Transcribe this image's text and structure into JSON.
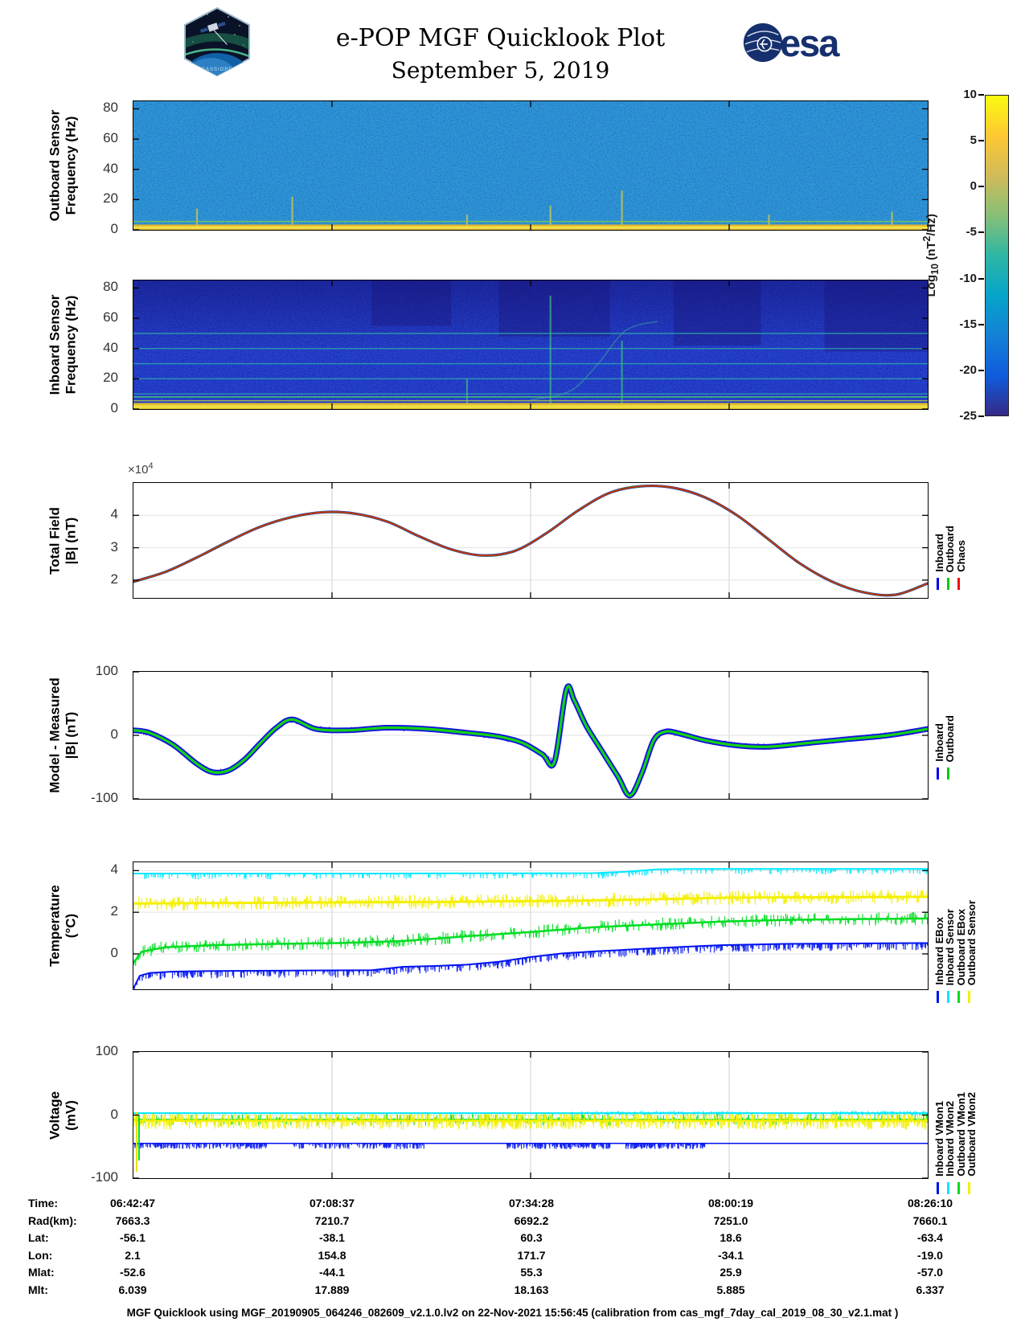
{
  "header": {
    "title": "e-POP MGF Quicklook Plot",
    "date": "September 5, 2019",
    "patch_label": "CASSIOPE",
    "esa_label": "esa"
  },
  "colorbar": {
    "range": [
      -25,
      10
    ],
    "ticks": [
      10,
      5,
      0,
      -5,
      -10,
      -15,
      -20,
      -25
    ],
    "stops": [
      "#352a87",
      "#0f5cdd",
      "#1481d6",
      "#06a4ca",
      "#2eb7a4",
      "#87bf77",
      "#d1bb59",
      "#fec832",
      "#f9fb0e"
    ],
    "label": {
      "p1": "Log",
      "sub": "10",
      "p2": " (nT",
      "sup": "2",
      "p3": "/Hz)"
    }
  },
  "legends": [
    {
      "panel": "total_field",
      "entries": [
        {
          "label": "Inboard",
          "color": "#0000ee"
        },
        {
          "label": "Outboard",
          "color": "#00cc00"
        },
        {
          "label": "Chaos",
          "color": "#ff0000"
        }
      ]
    },
    {
      "panel": "model_measured",
      "entries": [
        {
          "label": "Inboard",
          "color": "#0000ee"
        },
        {
          "label": "Outboard",
          "color": "#00cc00"
        }
      ]
    },
    {
      "panel": "temperature",
      "entries": [
        {
          "label": "Inboard EBox",
          "color": "#0013ee"
        },
        {
          "label": "Inboard Sensor",
          "color": "#00e8ff"
        },
        {
          "label": "Outboard EBox",
          "color": "#00dd22"
        },
        {
          "label": "Outboard Sensor",
          "color": "#f4f000"
        }
      ]
    },
    {
      "panel": "voltage",
      "entries": [
        {
          "label": "Inboard VMon1",
          "color": "#0013ee"
        },
        {
          "label": "Inboard VMon2",
          "color": "#00e8ff"
        },
        {
          "label": "Outboard VMon1",
          "color": "#00dd22"
        },
        {
          "label": "Outboard VMon2",
          "color": "#f4f000"
        }
      ]
    }
  ],
  "table": {
    "rows": [
      {
        "label": "Time:",
        "values": [
          "06:42:47",
          "07:08:37",
          "07:34:28",
          "08:00:19",
          "08:26:10"
        ]
      },
      {
        "label": "Rad(km):",
        "values": [
          "7663.3",
          "7210.7",
          "6692.2",
          "7251.0",
          "7660.1"
        ]
      },
      {
        "label": "Lat:",
        "values": [
          "-56.1",
          "-38.1",
          "60.3",
          "18.6",
          "-63.4"
        ]
      },
      {
        "label": "Lon:",
        "values": [
          "2.1",
          "154.8",
          "171.7",
          "-34.1",
          "-19.0"
        ]
      },
      {
        "label": "Mlat:",
        "values": [
          "-52.6",
          "-44.1",
          "55.3",
          "25.9",
          "-57.0"
        ]
      },
      {
        "label": "Mlt:",
        "values": [
          "6.039",
          "17.889",
          "18.163",
          "5.885",
          "6.337"
        ]
      }
    ]
  },
  "footer": {
    "text": "MGF Quicklook using MGF_20190905_064246_082609_v2.1.0.lv2 on 22-Nov-2021 15:56:45 (calibration from cas_mgf_7day_cal_2019_08_30_v2.1.mat )"
  },
  "chart_data": [
    {
      "id": "outboard_spectrogram",
      "type": "heatmap",
      "ylabel_lines": [
        "Outboard Sensor",
        "Frequency (Hz)"
      ],
      "ylim": [
        0,
        85
      ],
      "yticks": [
        0,
        20,
        40,
        60,
        80
      ],
      "colormap": "parula",
      "value_label": "Log10 (nT^2/Hz)",
      "value_range": [
        -25,
        10
      ],
      "background_log10_level": -10,
      "base_color": "#2e95d3",
      "noise_color": "#1747c0",
      "noise_opacity": 0.5,
      "bottom_band": {
        "freq_max": 3.5,
        "color": "#e2b62e"
      },
      "low_lines": [
        {
          "f": 5.5,
          "c": "#86c84e",
          "w": 1.5,
          "o": 0.85
        },
        {
          "f": 1.5,
          "c": "#f2e14a",
          "w": 3,
          "o": 1
        }
      ],
      "streaks": [
        {
          "x": 0.08,
          "f": 14
        },
        {
          "x": 0.2,
          "f": 22
        },
        {
          "x": 0.42,
          "f": 10
        },
        {
          "x": 0.525,
          "f": 16
        },
        {
          "x": 0.615,
          "f": 26
        },
        {
          "x": 0.8,
          "f": 10
        },
        {
          "x": 0.955,
          "f": 12
        }
      ],
      "streak_color": "#e8d23a"
    },
    {
      "id": "inboard_spectrogram",
      "type": "heatmap",
      "ylabel_lines": [
        "Inboard Sensor",
        "Frequency (Hz)"
      ],
      "ylim": [
        0,
        85
      ],
      "yticks": [
        0,
        20,
        40,
        60,
        80
      ],
      "colormap": "parula",
      "value_label": "Log10 (nT^2/Hz)",
      "value_range": [
        -25,
        10
      ],
      "background_log10_level": -18,
      "base_color": "#2640cc",
      "noise_color": "#0e1584",
      "noise_opacity": 0.6,
      "top_shade": {
        "color": "#100864",
        "opacity": 0.45
      },
      "harmonic_lines": {
        "freqs": [
          10,
          20,
          30,
          40,
          50
        ],
        "color": "#2fb3a8",
        "opacity": 0.75
      },
      "dark_bands": [
        [
          0.3,
          0.4,
          55
        ],
        [
          0.46,
          0.6,
          48
        ],
        [
          0.68,
          0.79,
          42
        ],
        [
          0.87,
          1.0,
          38
        ]
      ],
      "dark_color": "#191173",
      "curve": {
        "pts": [
          [
            0.5,
            6
          ],
          [
            0.55,
            12
          ],
          [
            0.585,
            30
          ],
          [
            0.62,
            52
          ],
          [
            0.66,
            58
          ]
        ],
        "color": "#43b89a"
      },
      "bottom_band": {
        "freq_max": 4,
        "color": "#e2c22e"
      },
      "low_lines": [
        {
          "f": 8,
          "c": "#49c474",
          "w": 1.8,
          "o": 0.8
        },
        {
          "f": 5.5,
          "c": "#bcd23c",
          "w": 1.5,
          "o": 0.8
        },
        {
          "f": 1.5,
          "c": "#f2e14a",
          "w": 3,
          "o": 1
        }
      ],
      "streaks": [
        {
          "x": 0.525,
          "f": 75
        },
        {
          "x": 0.615,
          "f": 45
        },
        {
          "x": 0.42,
          "f": 20
        }
      ],
      "streak_color": "#3ec87e"
    },
    {
      "id": "total_field",
      "type": "line",
      "smooth": true,
      "ylabel_lines": [
        "Total Field",
        "|B| (nT)"
      ],
      "multiplier": {
        "base": "×10",
        "exp": "4"
      },
      "ylim": [
        1.45,
        5.0
      ],
      "yticks": [
        2,
        3,
        4
      ],
      "xgrid": [
        0.25,
        0.5,
        0.75
      ],
      "x": [
        0,
        0.04,
        0.08,
        0.12,
        0.16,
        0.2,
        0.24,
        0.28,
        0.32,
        0.36,
        0.4,
        0.44,
        0.48,
        0.52,
        0.56,
        0.6,
        0.64,
        0.68,
        0.72,
        0.76,
        0.8,
        0.84,
        0.88,
        0.92,
        0.96,
        1.0
      ],
      "v": [
        1.95,
        2.25,
        2.7,
        3.2,
        3.65,
        3.95,
        4.1,
        4.05,
        3.8,
        3.35,
        2.95,
        2.76,
        2.9,
        3.45,
        4.15,
        4.7,
        4.9,
        4.85,
        4.55,
        4.0,
        3.25,
        2.5,
        1.95,
        1.62,
        1.55,
        1.9
      ],
      "series": [
        {
          "name": "Inboard",
          "color": "#1616d8",
          "width": 3.2
        },
        {
          "name": "Outboard",
          "color": "#0fa00f",
          "width": 2.4
        },
        {
          "name": "Chaos",
          "color": "#cf2b10",
          "width": 1.8
        }
      ]
    },
    {
      "id": "model_measured",
      "type": "line",
      "smooth": true,
      "ylabel_lines": [
        "Model - Measured",
        "|B| (nT)"
      ],
      "ylim": [
        -100,
        100
      ],
      "yticks": [
        -100,
        0,
        100
      ],
      "xgrid": [
        0.25,
        0.5,
        0.75
      ],
      "x": [
        0,
        0.02,
        0.05,
        0.08,
        0.1,
        0.12,
        0.14,
        0.16,
        0.18,
        0.2,
        0.23,
        0.27,
        0.32,
        0.37,
        0.42,
        0.46,
        0.49,
        0.515,
        0.53,
        0.545,
        0.555,
        0.57,
        0.59,
        0.61,
        0.625,
        0.64,
        0.655,
        0.67,
        0.69,
        0.72,
        0.76,
        0.8,
        0.85,
        0.9,
        0.95,
        1.0
      ],
      "v": [
        8,
        4,
        -15,
        -45,
        -58,
        -55,
        -38,
        -12,
        12,
        25,
        10,
        8,
        12,
        10,
        4,
        -2,
        -12,
        -30,
        -42,
        72,
        55,
        15,
        -25,
        -65,
        -95,
        -60,
        -8,
        6,
        2,
        -8,
        -16,
        -18,
        -12,
        -6,
        0,
        10
      ],
      "series": [
        {
          "name": "Inboard",
          "color": "#1313e0",
          "width": 7,
          "noise": {
            "amp": 5,
            "dir": 0,
            "density": 500
          }
        },
        {
          "name": "Outboard",
          "color": "#11d411",
          "width": 3.2
        }
      ]
    },
    {
      "id": "temperature",
      "type": "line",
      "ylabel_lines": [
        "Temperature",
        "(°C)"
      ],
      "ylim": [
        -1.7,
        4.4
      ],
      "yticks": [
        0,
        2,
        4
      ],
      "xgrid": [
        0.25,
        0.5,
        0.75
      ],
      "series": [
        {
          "name": "Inboard EBox",
          "color": "#0013ee",
          "width": 2,
          "x": [
            0,
            0.008,
            0.02,
            0.05,
            0.1,
            0.2,
            0.3,
            0.34,
            0.38,
            0.42,
            0.46,
            0.5,
            0.54,
            0.58,
            0.63,
            0.68,
            0.74,
            0.82,
            0.9,
            1.0
          ],
          "v": [
            -1.65,
            -1.05,
            -0.92,
            -0.85,
            -0.82,
            -0.8,
            -0.78,
            -0.62,
            -0.58,
            -0.52,
            -0.38,
            -0.15,
            0.02,
            0.12,
            0.22,
            0.32,
            0.42,
            0.48,
            0.5,
            0.52
          ],
          "noise": {
            "amp": 0.35,
            "dir": -1,
            "density": 520
          }
        },
        {
          "name": "Inboard Sensor",
          "color": "#00e8ff",
          "width": 2,
          "x": [
            0,
            0.3,
            0.58,
            0.62,
            0.66,
            0.7,
            1.0
          ],
          "v": [
            3.86,
            3.86,
            3.88,
            3.95,
            4.06,
            4.08,
            4.08
          ],
          "noise": {
            "amp": 0.28,
            "dir": -1,
            "density": 300
          }
        },
        {
          "name": "Outboard EBox",
          "color": "#00dd22",
          "width": 2.5,
          "x": [
            0,
            0.01,
            0.04,
            0.1,
            0.18,
            0.26,
            0.34,
            0.42,
            0.5,
            0.58,
            0.66,
            0.74,
            0.82,
            0.9,
            1.0
          ],
          "v": [
            -0.45,
            0.1,
            0.32,
            0.42,
            0.48,
            0.52,
            0.62,
            0.85,
            1.05,
            1.28,
            1.42,
            1.55,
            1.63,
            1.67,
            1.7
          ],
          "noise": {
            "amp": 0.32,
            "dir": 0,
            "density": 650
          }
        },
        {
          "name": "Outboard Sensor",
          "color": "#f4f000",
          "width": 3,
          "x": [
            0,
            0.2,
            0.4,
            0.55,
            0.65,
            0.75,
            0.85,
            1.0
          ],
          "v": [
            2.42,
            2.46,
            2.5,
            2.55,
            2.62,
            2.7,
            2.72,
            2.74
          ],
          "noise": {
            "amp": 0.35,
            "dir": 0,
            "density": 750
          }
        }
      ]
    },
    {
      "id": "voltage",
      "type": "line",
      "ylabel_lines": [
        "Voltage",
        "(mV)"
      ],
      "ylim": [
        -100,
        100
      ],
      "yticks": [
        -100,
        0,
        100
      ],
      "xgrid": [
        0.25,
        0.5,
        0.75
      ],
      "series": [
        {
          "name": "Outboard VMon1",
          "color": "#00dd22",
          "width": 1.5,
          "x": [
            0,
            1
          ],
          "v": [
            -7,
            -7
          ],
          "noise": {
            "amp": 10,
            "dir": 0,
            "density": 380
          }
        },
        {
          "name": "Outboard VMon2",
          "color": "#f4f000",
          "width": 2.5,
          "x": [
            0,
            1
          ],
          "v": [
            -9,
            -9
          ],
          "noise": {
            "amp": 14,
            "dir": 0,
            "density": 1200
          }
        },
        {
          "name": "Inboard VMon2",
          "color": "#00e8ff",
          "width": 2,
          "x": [
            0,
            1
          ],
          "v": [
            3,
            3
          ],
          "noise": {
            "amp": 3.5,
            "dir": 0,
            "density": 300,
            "segments": [
              [
                0.55,
                0.78
              ],
              [
                0.88,
                1.0
              ]
            ]
          }
        },
        {
          "name": "Inboard VMon1",
          "color": "#0013ee",
          "width": 1.5,
          "x": [
            0,
            1
          ],
          "v": [
            -45,
            -45
          ],
          "noise": {
            "amp": 9,
            "dir": -1,
            "density": 560,
            "segments": [
              [
                0,
                0.17
              ],
              [
                0.2,
                0.37
              ],
              [
                0.47,
                0.6
              ],
              [
                0.62,
                0.72
              ]
            ]
          }
        }
      ],
      "transients": [
        {
          "x": 0.004,
          "v0": 5,
          "v1": -90,
          "color": "#e8e000"
        },
        {
          "x": 0.007,
          "v0": 0,
          "v1": -72,
          "color": "#00dd22"
        }
      ]
    }
  ]
}
